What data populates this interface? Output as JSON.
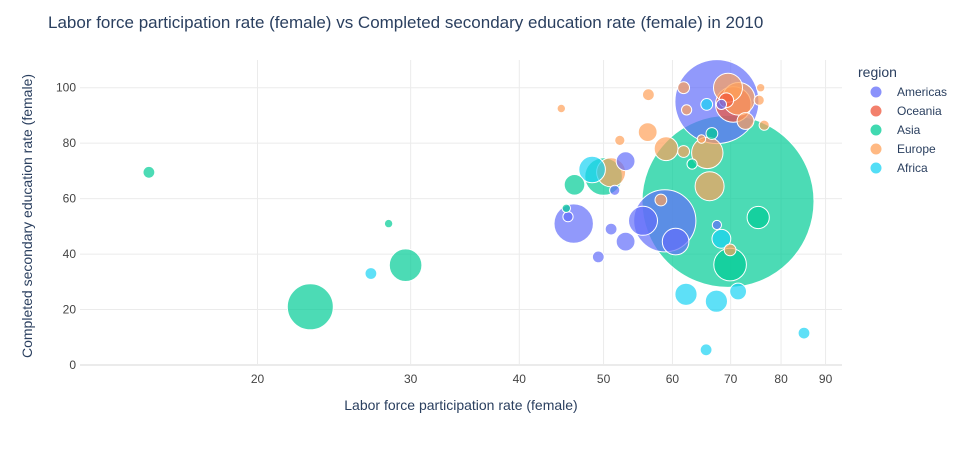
{
  "chart_data": {
    "type": "scatter",
    "title": "Labor force participation rate (female) vs Completed secondary education rate (female) in 2010",
    "xlabel": "Labor force participation rate (female)",
    "ylabel": "Completed secondary education rate (female)",
    "x_scale": "log",
    "xlim": [
      12.5,
      94
    ],
    "ylim": [
      0,
      110
    ],
    "x_ticks": [
      20,
      30,
      40,
      50,
      60,
      70,
      80,
      90
    ],
    "y_ticks": [
      0,
      20,
      40,
      60,
      80,
      100
    ],
    "grid": true,
    "legend": {
      "title": "region",
      "placement": "top-right"
    },
    "series": [
      {
        "name": "Americas",
        "color": "#636efa",
        "points": [
          {
            "x": 67.5,
            "y": 95,
            "size": 100
          },
          {
            "x": 58.8,
            "y": 52,
            "size": 55
          },
          {
            "x": 46.2,
            "y": 51,
            "size": 22
          },
          {
            "x": 55.5,
            "y": 52,
            "size": 12
          },
          {
            "x": 60.5,
            "y": 44.5,
            "size": 10
          },
          {
            "x": 53,
            "y": 73.5,
            "size": 5
          },
          {
            "x": 53,
            "y": 44.5,
            "size": 5
          },
          {
            "x": 51,
            "y": 49,
            "size": 2
          },
          {
            "x": 49.3,
            "y": 39,
            "size": 2
          },
          {
            "x": 51.5,
            "y": 63,
            "size": 1.5
          },
          {
            "x": 45.5,
            "y": 53.5,
            "size": 1.5
          },
          {
            "x": 68.3,
            "y": 94,
            "size": 1.5
          },
          {
            "x": 67.5,
            "y": 50.5,
            "size": 1.2
          }
        ]
      },
      {
        "name": "Oceania",
        "color": "#ef553b",
        "points": [
          {
            "x": 70.5,
            "y": 94,
            "size": 18
          },
          {
            "x": 69.2,
            "y": 95.5,
            "size": 3
          }
        ]
      },
      {
        "name": "Asia",
        "color": "#00cc96",
        "points": [
          {
            "x": 69.5,
            "y": 59,
            "size": 420
          },
          {
            "x": 23,
            "y": 21,
            "size": 30
          },
          {
            "x": 29.6,
            "y": 36,
            "size": 15
          },
          {
            "x": 50,
            "y": 68,
            "size": 20
          },
          {
            "x": 69.9,
            "y": 36.2,
            "size": 15
          },
          {
            "x": 46.3,
            "y": 65,
            "size": 6
          },
          {
            "x": 75.3,
            "y": 53.2,
            "size": 7
          },
          {
            "x": 15,
            "y": 69.5,
            "size": 2
          },
          {
            "x": 66.6,
            "y": 83.5,
            "size": 2
          },
          {
            "x": 63.2,
            "y": 72.5,
            "size": 1.5
          },
          {
            "x": 28.3,
            "y": 51,
            "size": 1
          },
          {
            "x": 45.3,
            "y": 56.5,
            "size": 1
          }
        ]
      },
      {
        "name": "Europe",
        "color": "#ffa15a",
        "points": [
          {
            "x": 69.5,
            "y": 100,
            "size": 12
          },
          {
            "x": 71.5,
            "y": 96,
            "size": 15
          },
          {
            "x": 65.8,
            "y": 76.5,
            "size": 14
          },
          {
            "x": 66.2,
            "y": 64.5,
            "size": 12
          },
          {
            "x": 51,
            "y": 69.5,
            "size": 12
          },
          {
            "x": 59,
            "y": 78,
            "size": 8
          },
          {
            "x": 56.2,
            "y": 84,
            "size": 5
          },
          {
            "x": 72.8,
            "y": 88,
            "size": 4
          },
          {
            "x": 61.8,
            "y": 100,
            "size": 2
          },
          {
            "x": 56.3,
            "y": 97.5,
            "size": 2
          },
          {
            "x": 62.3,
            "y": 92,
            "size": 1.5
          },
          {
            "x": 75.5,
            "y": 95.5,
            "size": 1.5
          },
          {
            "x": 76.5,
            "y": 86.5,
            "size": 1.5
          },
          {
            "x": 75.8,
            "y": 100,
            "size": 1
          },
          {
            "x": 61.8,
            "y": 77,
            "size": 2
          },
          {
            "x": 58.2,
            "y": 59.5,
            "size": 2
          },
          {
            "x": 69.9,
            "y": 41.5,
            "size": 2
          },
          {
            "x": 52.2,
            "y": 81,
            "size": 1.5
          },
          {
            "x": 44.7,
            "y": 92.5,
            "size": 1
          },
          {
            "x": 64.8,
            "y": 81.5,
            "size": 1
          }
        ]
      },
      {
        "name": "Africa",
        "color": "#19d3f3",
        "points": [
          {
            "x": 48.5,
            "y": 70.5,
            "size": 10
          },
          {
            "x": 62.2,
            "y": 25.5,
            "size": 7
          },
          {
            "x": 67.4,
            "y": 23,
            "size": 7
          },
          {
            "x": 68.3,
            "y": 45.5,
            "size": 5
          },
          {
            "x": 71.4,
            "y": 26.5,
            "size": 4
          },
          {
            "x": 27,
            "y": 33,
            "size": 2
          },
          {
            "x": 85,
            "y": 11.5,
            "size": 2
          },
          {
            "x": 65.6,
            "y": 5.5,
            "size": 2
          },
          {
            "x": 65.7,
            "y": 94,
            "size": 2
          }
        ]
      }
    ]
  }
}
